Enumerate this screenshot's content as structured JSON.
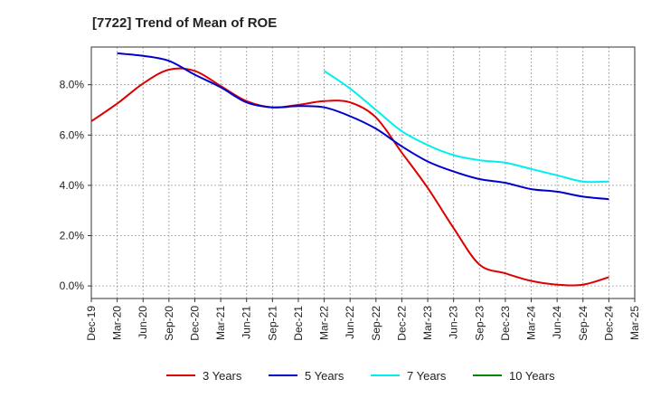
{
  "chart_data": {
    "type": "line",
    "title": "[7722]  Trend of Mean of ROE",
    "xlabel": "",
    "ylabel": "",
    "x_ticks": [
      "Dec-19",
      "Mar-20",
      "Jun-20",
      "Sep-20",
      "Dec-20",
      "Mar-21",
      "Jun-21",
      "Sep-21",
      "Dec-21",
      "Mar-22",
      "Jun-22",
      "Sep-22",
      "Dec-22",
      "Mar-23",
      "Jun-23",
      "Sep-23",
      "Dec-23",
      "Mar-24",
      "Jun-24",
      "Sep-24",
      "Dec-24",
      "Mar-25"
    ],
    "y_ticks": [
      0,
      2,
      4,
      6,
      8
    ],
    "y_tick_labels": [
      "0.0%",
      "2.0%",
      "4.0%",
      "6.0%",
      "8.0%"
    ],
    "ylim": [
      -0.5,
      9.5
    ],
    "grid": true,
    "legend_position": "bottom",
    "series": [
      {
        "name": "3 Years",
        "color": "#dd0000",
        "values": [
          6.55,
          7.25,
          8.05,
          8.6,
          8.55,
          7.95,
          7.35,
          7.1,
          7.2,
          7.35,
          7.3,
          6.7,
          5.3,
          3.9,
          2.3,
          0.85,
          0.5,
          0.2,
          0.05,
          0.05,
          0.35
        ]
      },
      {
        "name": "5 Years",
        "color": "#0000cc",
        "values": [
          null,
          9.25,
          9.15,
          8.95,
          8.4,
          7.9,
          7.3,
          7.1,
          7.15,
          7.1,
          6.75,
          6.25,
          5.55,
          4.95,
          4.55,
          4.25,
          4.1,
          3.85,
          3.75,
          3.55,
          3.45
        ]
      },
      {
        "name": "7 Years",
        "color": "#00eeee",
        "values": [
          null,
          null,
          null,
          null,
          null,
          null,
          null,
          null,
          null,
          8.55,
          7.85,
          7.0,
          6.15,
          5.6,
          5.2,
          5.0,
          4.9,
          4.65,
          4.4,
          4.15,
          4.15
        ]
      },
      {
        "name": "10 Years",
        "color": "#008800",
        "values": [
          null,
          null,
          null,
          null,
          null,
          null,
          null,
          null,
          null,
          null,
          null,
          null,
          null,
          null,
          null,
          null,
          null,
          null,
          null,
          null,
          null
        ]
      }
    ]
  }
}
